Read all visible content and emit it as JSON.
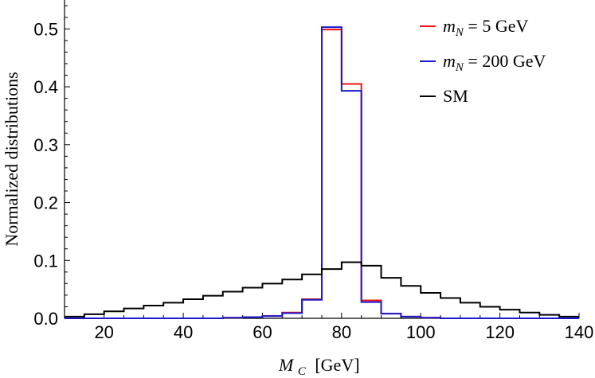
{
  "chart_data": {
    "type": "histogram",
    "xlabel": {
      "main": "M",
      "sub": "C",
      "unit": "[GeV]"
    },
    "ylabel": "Normalized distributions",
    "xlim": [
      10,
      140
    ],
    "ylim": [
      0,
      0.55
    ],
    "xticks": [
      20,
      40,
      60,
      80,
      100,
      120,
      140
    ],
    "yticks": [
      0.0,
      0.1,
      0.2,
      0.3,
      0.4,
      0.5
    ],
    "ytick_labels": [
      "0.0",
      "0.1",
      "0.2",
      "0.3",
      "0.4",
      "0.5"
    ],
    "bin_edges": [
      10,
      15,
      20,
      25,
      30,
      35,
      40,
      45,
      50,
      55,
      60,
      65,
      70,
      75,
      80,
      85,
      90,
      95,
      100,
      105,
      110,
      115,
      120,
      125,
      130,
      135,
      140
    ],
    "series": [
      {
        "name": "m_N = 5 GeV",
        "legend": {
          "symbol": "m",
          "sub": "N",
          "rest": " = 5 GeV"
        },
        "color": "#ee1111",
        "values": [
          0.0,
          0.0,
          0.0,
          0.0,
          0.0,
          0.0,
          0.0,
          0.0,
          0.001,
          0.002,
          0.004,
          0.01,
          0.033,
          0.499,
          0.405,
          0.031,
          0.008,
          0.003,
          0.001,
          0.0,
          0.0,
          0.0,
          0.0,
          0.0,
          0.0,
          0.0
        ]
      },
      {
        "name": "m_N = 200 GeV",
        "legend": {
          "symbol": "m",
          "sub": "N",
          "rest": " = 200 GeV"
        },
        "color": "#1a1acc",
        "values": [
          0.0,
          0.0,
          0.0,
          0.0,
          0.0,
          0.0,
          0.0,
          0.0,
          0.001,
          0.002,
          0.004,
          0.009,
          0.032,
          0.503,
          0.393,
          0.028,
          0.008,
          0.003,
          0.001,
          0.0,
          0.0,
          0.0,
          0.0,
          0.0,
          0.0,
          0.0
        ]
      },
      {
        "name": "SM",
        "legend": {
          "symbol": "",
          "sub": "",
          "rest": "SM"
        },
        "color": "#000000",
        "values": [
          0.003,
          0.007,
          0.012,
          0.017,
          0.022,
          0.027,
          0.033,
          0.039,
          0.046,
          0.053,
          0.06,
          0.067,
          0.076,
          0.085,
          0.097,
          0.091,
          0.07,
          0.056,
          0.044,
          0.035,
          0.027,
          0.02,
          0.015,
          0.01,
          0.006,
          0.003
        ]
      }
    ],
    "legend_position": "top-right",
    "grid": false
  }
}
